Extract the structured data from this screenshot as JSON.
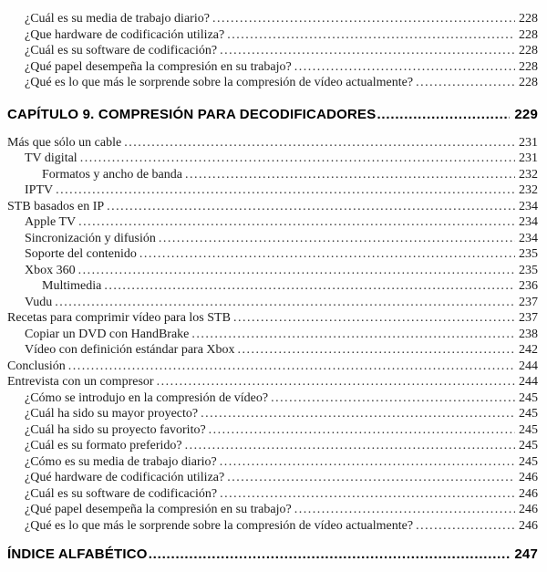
{
  "toc": {
    "rows": [
      {
        "type": "entry",
        "level": 1,
        "label": "¿Cuál es su media de trabajo diario?",
        "page": "228"
      },
      {
        "type": "entry",
        "level": 1,
        "label": "¿Que hardware de codificación utiliza?",
        "page": "228"
      },
      {
        "type": "entry",
        "level": 1,
        "label": "¿Cuál es su software de codificación?",
        "page": "228"
      },
      {
        "type": "entry",
        "level": 1,
        "label": "¿Qué papel desempeña la compresión en su trabajo?",
        "page": "228"
      },
      {
        "type": "entry",
        "level": 1,
        "label": "¿Qué es lo que más le sorprende sobre la compresión de vídeo actualmente?",
        "page": "228"
      },
      {
        "type": "spacer",
        "size": "a"
      },
      {
        "type": "chapter",
        "level": 0,
        "label": "CAPÍTULO 9. COMPRESIÓN PARA DECODIFICADORES",
        "page": "229"
      },
      {
        "type": "spacer",
        "size": "b"
      },
      {
        "type": "entry",
        "level": 0,
        "label": "Más que sólo un cable",
        "page": "231"
      },
      {
        "type": "entry",
        "level": 1,
        "label": "TV digital",
        "page": "231"
      },
      {
        "type": "entry",
        "level": 2,
        "label": "Formatos y ancho de banda",
        "page": "232"
      },
      {
        "type": "entry",
        "level": 1,
        "label": "IPTV",
        "page": "232"
      },
      {
        "type": "entry",
        "level": 0,
        "label": "STB basados en IP",
        "page": "234"
      },
      {
        "type": "entry",
        "level": 1,
        "label": "Apple TV",
        "page": "234"
      },
      {
        "type": "entry",
        "level": 1,
        "label": "Sincronización y difusión",
        "page": "234"
      },
      {
        "type": "entry",
        "level": 1,
        "label": "Soporte del contenido",
        "page": "235"
      },
      {
        "type": "entry",
        "level": 1,
        "label": "Xbox 360",
        "page": "235"
      },
      {
        "type": "entry",
        "level": 2,
        "label": "Multimedia",
        "page": "236"
      },
      {
        "type": "entry",
        "level": 1,
        "label": "Vudu",
        "page": "237"
      },
      {
        "type": "entry",
        "level": 0,
        "label": "Recetas para comprimir vídeo para los STB",
        "page": "237"
      },
      {
        "type": "entry",
        "level": 1,
        "label": "Copiar un DVD con HandBrake",
        "page": "238"
      },
      {
        "type": "entry",
        "level": 1,
        "label": "Vídeo con definición estándar para Xbox",
        "page": "242"
      },
      {
        "type": "entry",
        "level": 0,
        "label": "Conclusión",
        "page": "244"
      },
      {
        "type": "entry",
        "level": 0,
        "label": "Entrevista con un compresor",
        "page": "244"
      },
      {
        "type": "entry",
        "level": 1,
        "label": "¿Cómo se introdujo en la compresión de vídeo?",
        "page": "245"
      },
      {
        "type": "entry",
        "level": 1,
        "label": "¿Cuál ha sido su mayor proyecto?",
        "page": "245"
      },
      {
        "type": "entry",
        "level": 1,
        "label": "¿Cuál ha sido su proyecto favorito?",
        "page": "245"
      },
      {
        "type": "entry",
        "level": 1,
        "label": "¿Cuál es su formato preferido?",
        "page": "245"
      },
      {
        "type": "entry",
        "level": 1,
        "label": "¿Cómo es su media de trabajo diario?",
        "page": "245"
      },
      {
        "type": "entry",
        "level": 1,
        "label": "¿Qué hardware de codificación utiliza?",
        "page": "246"
      },
      {
        "type": "entry",
        "level": 1,
        "label": "¿Cuál es su software de codificación?",
        "page": "246"
      },
      {
        "type": "entry",
        "level": 1,
        "label": "¿Qué papel desempeña la compresión en su trabajo?",
        "page": "246"
      },
      {
        "type": "entry",
        "level": 1,
        "label": "¿Qué es lo que más le sorprende sobre la compresión de vídeo actualmente?",
        "page": "246"
      },
      {
        "type": "spacer",
        "size": "c"
      },
      {
        "type": "chapter",
        "level": 0,
        "label": "ÍNDICE ALFABÉTICO",
        "page": "247"
      }
    ],
    "text_color": "#1c1c1c",
    "heading_color": "#000000"
  }
}
